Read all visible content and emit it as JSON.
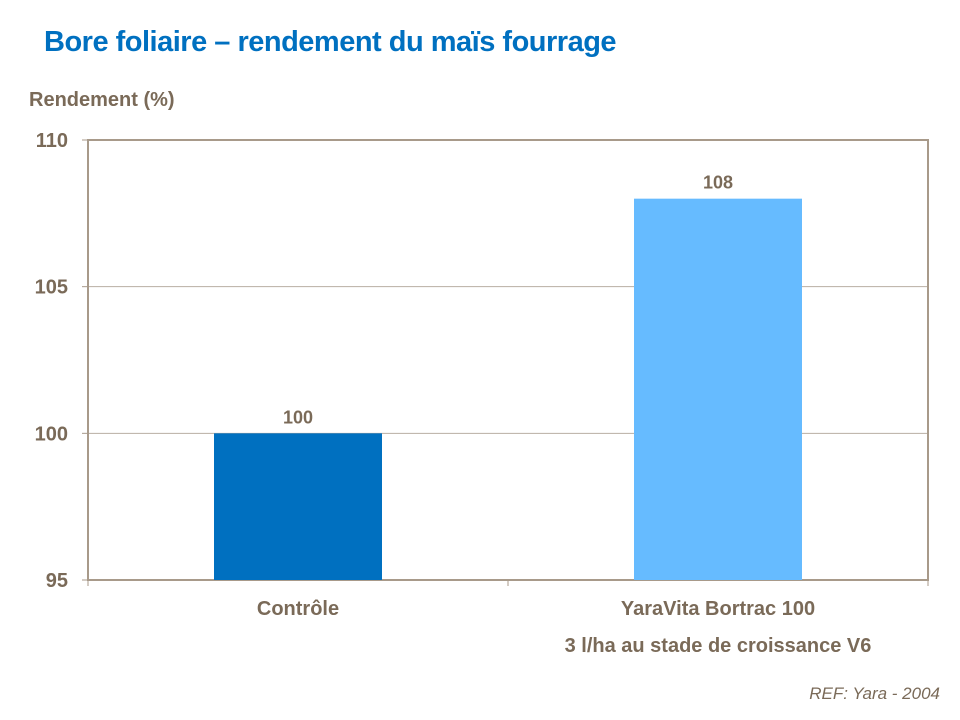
{
  "chart_data": {
    "type": "bar",
    "title": "Bore foliaire – rendement du maïs fourrage",
    "ylabel": "Rendement (%)",
    "ylim": [
      95,
      110
    ],
    "yticks": [
      95,
      100,
      105,
      110
    ],
    "grid": true,
    "categories": [
      {
        "lines": [
          "Contrôle"
        ]
      },
      {
        "lines": [
          "YaraVita Bortrac 100",
          "3 l/ha au stade de croissance V6"
        ]
      }
    ],
    "values": [
      100,
      108
    ],
    "colors": [
      "#0070c0",
      "#66bbff"
    ],
    "data_labels": [
      "100",
      "108"
    ]
  },
  "footer": {
    "ref": "REF: Yara - 2004"
  }
}
